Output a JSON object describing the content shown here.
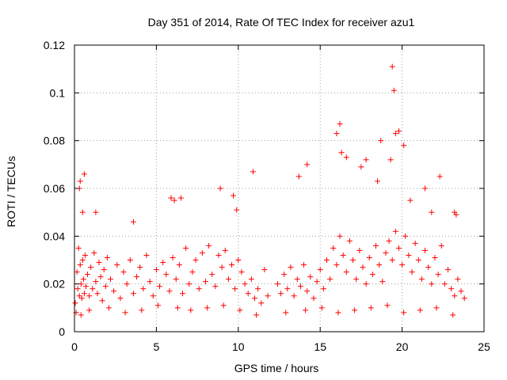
{
  "chart_data": {
    "type": "scatter",
    "title": "Day 351 of 2014, Rate Of TEC Index for receiver azu1",
    "xlabel": "GPS time / hours",
    "ylabel": "ROTI / TECUs",
    "xlim": [
      0,
      25
    ],
    "ylim": [
      0,
      0.12
    ],
    "xticks": [
      "0",
      "5",
      "10",
      "15",
      "20",
      "25"
    ],
    "yticks": [
      "0",
      "0.02",
      "0.04",
      "0.06",
      "0.08",
      "0.1",
      "0.12"
    ],
    "grid": true,
    "marker": "+",
    "color": "#ff0000",
    "series": [
      {
        "name": "ROTI",
        "x": [
          0.05,
          0.15,
          0.2,
          0.25,
          0.3,
          0.35,
          0.4,
          0.45,
          0.5,
          0.55,
          0.6,
          0.65,
          0.7,
          0.8,
          0.9,
          1.0,
          1.1,
          1.2,
          1.3,
          1.4,
          1.5,
          1.6,
          1.7,
          1.8,
          1.9,
          2.0,
          2.2,
          2.4,
          2.6,
          2.8,
          3.0,
          3.2,
          3.4,
          3.6,
          3.8,
          4.0,
          4.2,
          4.4,
          4.6,
          4.8,
          5.0,
          5.2,
          5.4,
          5.6,
          5.8,
          6.0,
          6.2,
          6.4,
          6.6,
          6.8,
          7.0,
          7.2,
          7.4,
          7.6,
          7.8,
          8.0,
          8.2,
          8.4,
          8.6,
          8.8,
          9.0,
          9.2,
          9.4,
          9.6,
          9.8,
          10.0,
          10.2,
          10.4,
          10.6,
          10.8,
          11.0,
          11.2,
          11.4,
          11.6,
          11.8,
          12.4,
          12.6,
          12.8,
          13.0,
          13.2,
          13.4,
          13.6,
          13.8,
          14.0,
          14.2,
          14.4,
          14.6,
          14.8,
          15.0,
          15.2,
          15.4,
          15.6,
          15.8,
          16.0,
          16.2,
          16.4,
          16.6,
          16.8,
          17.0,
          17.2,
          17.4,
          17.6,
          17.8,
          18.0,
          18.2,
          18.4,
          18.6,
          18.8,
          19.0,
          19.2,
          19.4,
          19.6,
          19.8,
          20.0,
          20.2,
          20.4,
          20.6,
          20.8,
          21.0,
          21.2,
          21.4,
          21.6,
          21.8,
          22.0,
          22.2,
          22.4,
          22.6,
          22.8,
          23.0,
          23.2,
          23.4,
          23.6,
          23.8,
          0.3,
          0.35,
          0.5,
          0.6,
          1.3,
          3.6,
          5.9,
          6.1,
          6.5,
          8.9,
          9.7,
          9.9,
          10.9,
          13.7,
          14.2,
          16.0,
          16.2,
          16.3,
          16.6,
          17.5,
          17.8,
          18.5,
          18.7,
          19.3,
          19.4,
          19.5,
          19.6,
          19.8,
          20.1,
          20.5,
          21.4,
          21.8,
          22.3,
          23.2,
          23.3,
          0.1,
          0.4,
          0.9,
          2.1,
          3.1,
          4.1,
          5.1,
          6.3,
          7.1,
          8.1,
          9.1,
          10.1,
          11.1,
          12.9,
          14.1,
          15.1,
          16.1,
          17.1,
          18.1,
          19.1,
          20.1,
          21.1,
          22.1,
          23.1
        ],
        "y": [
          0.012,
          0.025,
          0.018,
          0.035,
          0.015,
          0.028,
          0.02,
          0.014,
          0.03,
          0.022,
          0.016,
          0.032,
          0.019,
          0.024,
          0.015,
          0.027,
          0.018,
          0.033,
          0.021,
          0.016,
          0.029,
          0.023,
          0.013,
          0.026,
          0.019,
          0.031,
          0.022,
          0.017,
          0.028,
          0.014,
          0.025,
          0.02,
          0.03,
          0.016,
          0.023,
          0.027,
          0.018,
          0.032,
          0.021,
          0.015,
          0.026,
          0.019,
          0.029,
          0.024,
          0.017,
          0.031,
          0.022,
          0.028,
          0.016,
          0.035,
          0.02,
          0.025,
          0.03,
          0.018,
          0.033,
          0.021,
          0.036,
          0.024,
          0.019,
          0.032,
          0.027,
          0.034,
          0.022,
          0.028,
          0.018,
          0.03,
          0.025,
          0.02,
          0.016,
          0.022,
          0.014,
          0.018,
          0.012,
          0.026,
          0.015,
          0.02,
          0.016,
          0.024,
          0.018,
          0.027,
          0.015,
          0.022,
          0.019,
          0.028,
          0.017,
          0.023,
          0.014,
          0.021,
          0.026,
          0.018,
          0.03,
          0.022,
          0.035,
          0.028,
          0.04,
          0.032,
          0.025,
          0.038,
          0.03,
          0.022,
          0.034,
          0.027,
          0.02,
          0.031,
          0.024,
          0.036,
          0.028,
          0.021,
          0.033,
          0.038,
          0.03,
          0.042,
          0.035,
          0.028,
          0.04,
          0.032,
          0.025,
          0.037,
          0.03,
          0.022,
          0.034,
          0.027,
          0.02,
          0.031,
          0.024,
          0.036,
          0.02,
          0.026,
          0.018,
          0.015,
          0.022,
          0.017,
          0.014,
          0.06,
          0.063,
          0.05,
          0.066,
          0.05,
          0.046,
          0.056,
          0.055,
          0.056,
          0.06,
          0.057,
          0.051,
          0.067,
          0.065,
          0.07,
          0.083,
          0.087,
          0.075,
          0.073,
          0.069,
          0.072,
          0.063,
          0.08,
          0.072,
          0.111,
          0.101,
          0.083,
          0.084,
          0.078,
          0.055,
          0.06,
          0.05,
          0.065,
          0.05,
          0.049,
          0.008,
          0.007,
          0.009,
          0.01,
          0.008,
          0.009,
          0.011,
          0.01,
          0.009,
          0.01,
          0.011,
          0.009,
          0.007,
          0.008,
          0.009,
          0.01,
          0.008,
          0.009,
          0.01,
          0.011,
          0.008,
          0.009,
          0.01,
          0.007
        ]
      }
    ]
  }
}
